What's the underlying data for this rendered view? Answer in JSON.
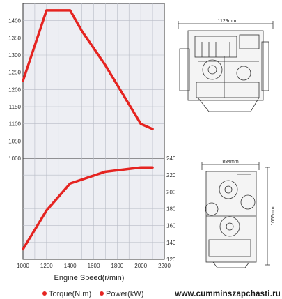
{
  "chart_data": [
    {
      "type": "line",
      "name": "torque-chart",
      "x": [
        1000,
        1200,
        1400,
        1500,
        1700,
        2000,
        2100
      ],
      "series": [
        {
          "name": "Torque(N.m)",
          "values": [
            1225,
            1430,
            1430,
            1370,
            1270,
            1100,
            1085
          ]
        }
      ],
      "xlim": [
        1000,
        2200
      ],
      "ylim": [
        1000,
        1450
      ],
      "yticks": [
        1000,
        1050,
        1100,
        1150,
        1200,
        1250,
        1300,
        1350,
        1400
      ],
      "ytick_labels": [
        "1000",
        "1050",
        "1100",
        "1150",
        "1200",
        "1250",
        "1300",
        "1350",
        "1400"
      ],
      "axis_side": "left",
      "grid": true
    },
    {
      "type": "line",
      "name": "power-chart",
      "x": [
        1000,
        1200,
        1400,
        1700,
        2000,
        2100
      ],
      "series": [
        {
          "name": "Power(kW)",
          "values": [
            132,
            178,
            210,
            224,
            229,
            229
          ]
        }
      ],
      "xlim": [
        1000,
        2200
      ],
      "ylim": [
        120,
        240
      ],
      "yticks": [
        120,
        140,
        160,
        180,
        200,
        220,
        240
      ],
      "ytick_labels": [
        "120",
        "140",
        "160",
        "180",
        "200",
        "220",
        "240"
      ],
      "xticks": [
        1000,
        1200,
        1400,
        1600,
        1800,
        2000,
        2200
      ],
      "xtick_labels": [
        "1000",
        "1200",
        "1400",
        "1600",
        "1800",
        "2000",
        "2200"
      ],
      "axis_side": "right",
      "grid": true
    }
  ],
  "xlabel": "Engine Speed(r/min)",
  "legend": [
    {
      "label": "Torque(N.m)",
      "color": "#e52421"
    },
    {
      "label": "Power(kW)",
      "color": "#e52421"
    }
  ],
  "colors": {
    "series": "#e52421",
    "grid": "#b8bcc6",
    "plot_bg": "#edeef3",
    "frame": "#333333"
  },
  "drawings": {
    "side_view": {
      "icon": "engine-side-view-drawing",
      "dimension": "1129mm"
    },
    "front_view": {
      "icon": "engine-front-view-drawing",
      "width_dimension": "884mm",
      "height_dimension": "1065mm"
    }
  },
  "watermark": "www.cumminszapchasti.ru"
}
